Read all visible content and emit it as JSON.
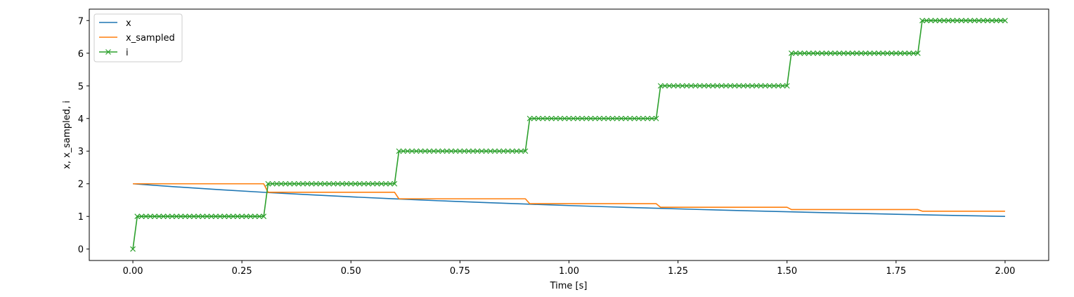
{
  "chart_data": {
    "type": "line",
    "xlabel": "Time [s]",
    "ylabel": "x, x_sampled, i",
    "xlim": [
      -0.1,
      2.1
    ],
    "ylim": [
      -0.35,
      7.35
    ],
    "xticks": [
      0.0,
      0.25,
      0.5,
      0.75,
      1.0,
      1.25,
      1.5,
      1.75,
      2.0
    ],
    "xtick_labels": [
      "0.00",
      "0.25",
      "0.50",
      "0.75",
      "1.00",
      "1.25",
      "1.50",
      "1.75",
      "2.00"
    ],
    "yticks": [
      0,
      1,
      2,
      3,
      4,
      5,
      6,
      7
    ],
    "ytick_labels": [
      "0",
      "1",
      "2",
      "3",
      "4",
      "5",
      "6",
      "7"
    ],
    "grid": false,
    "legend_position": "upper-left",
    "series": [
      {
        "name": "x",
        "color": "#1f77b4",
        "marker": "none",
        "x": [
          0.0,
          0.1,
          0.2,
          0.3,
          0.4,
          0.5,
          0.6,
          0.7,
          0.8,
          0.9,
          1.0,
          1.1,
          1.2,
          1.3,
          1.4,
          1.5,
          1.6,
          1.7,
          1.8,
          1.9,
          2.0
        ],
        "y": [
          2.0,
          1.905,
          1.818,
          1.739,
          1.667,
          1.6,
          1.538,
          1.481,
          1.429,
          1.379,
          1.333,
          1.29,
          1.25,
          1.212,
          1.176,
          1.143,
          1.111,
          1.081,
          1.053,
          1.026,
          1.0
        ]
      },
      {
        "name": "x_sampled",
        "color": "#ff7f0e",
        "marker": "none",
        "x": [
          0.0,
          0.3,
          0.31,
          0.6,
          0.61,
          0.9,
          0.91,
          1.2,
          1.21,
          1.5,
          1.51,
          1.8,
          1.81,
          2.0
        ],
        "y": [
          2.0,
          2.0,
          1.74,
          1.74,
          1.54,
          1.54,
          1.39,
          1.39,
          1.28,
          1.28,
          1.21,
          1.21,
          1.16,
          1.16
        ]
      },
      {
        "name": "i",
        "color": "#2ca02c",
        "marker": "x",
        "x": [
          0.0,
          0.01,
          0.3,
          0.31,
          0.6,
          0.61,
          0.9,
          0.91,
          1.2,
          1.21,
          1.5,
          1.51,
          1.8,
          1.81,
          2.0
        ],
        "y": [
          0,
          1,
          1,
          2,
          2,
          3,
          3,
          4,
          4,
          5,
          5,
          6,
          6,
          7,
          7
        ],
        "marker_step": 0.01
      }
    ]
  }
}
